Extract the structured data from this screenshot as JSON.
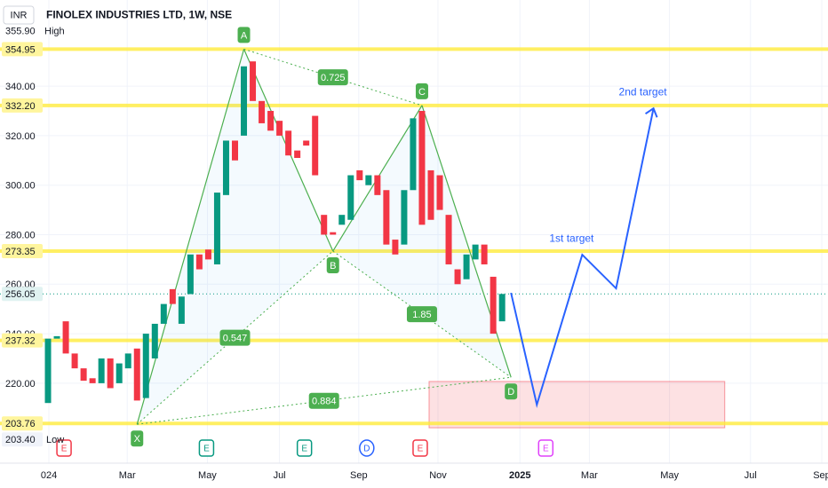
{
  "chart_data": {
    "type": "candlestick",
    "title": "FINOLEX INDUSTRIES LTD, 1W, NSE",
    "currency": "INR",
    "up_color": "#089981",
    "down_color": "#f23645",
    "categories": [
      null,
      null,
      null,
      null,
      null,
      null,
      null,
      null,
      null,
      null,
      null,
      null,
      null,
      null,
      null,
      null,
      null,
      null,
      null,
      null,
      null,
      null,
      null,
      null,
      null,
      null,
      null,
      null,
      null,
      null,
      null,
      null,
      null,
      null,
      null,
      null,
      null,
      null,
      null,
      null,
      null,
      null,
      null,
      null,
      null,
      null,
      null,
      null,
      null,
      null,
      null,
      null
    ],
    "open": [
      212,
      238,
      245,
      232,
      226,
      222,
      220,
      230,
      220,
      226,
      234,
      214,
      230,
      244,
      258,
      244,
      256,
      272,
      274,
      268,
      296,
      318,
      320,
      350,
      334,
      330,
      326,
      322,
      314,
      318,
      328,
      288,
      281,
      284,
      286,
      306,
      300,
      304,
      298,
      278,
      276,
      298,
      330,
      306,
      304,
      288,
      266,
      262,
      270,
      276,
      263,
      245
    ],
    "high": {
      "value": {
        "value": 355.9,
        "label": "355.90"
      },
      "tag": "High"
    },
    "low": {
      "value": {
        "value": 203.4,
        "label": "203.40"
      },
      "tag": "Low"
    },
    "close": [
      238,
      239,
      232,
      226,
      221,
      220,
      230,
      218,
      228,
      232,
      213,
      240,
      244,
      252,
      252,
      255,
      272,
      266,
      270,
      297,
      318,
      310,
      348,
      334,
      325,
      322,
      320,
      312,
      311,
      316,
      304,
      280,
      280,
      288,
      304,
      302,
      304,
      296,
      276,
      272,
      298,
      327,
      284,
      286,
      290,
      268,
      260,
      272,
      276,
      268,
      240,
      256.05
    ],
    "xlim": [
      -5.39,
      87.6
    ],
    "ylim": [
      187.7,
      374.8
    ],
    "xticks": [
      {
        "value": 0.1,
        "label": "024"
      },
      {
        "value": 8.9,
        "label": "Mar"
      },
      {
        "value": 17.9,
        "label": "May"
      },
      {
        "value": 26,
        "label": "Jul"
      },
      {
        "value": 34.9,
        "label": "Sep"
      },
      {
        "value": 43.8,
        "label": "Nov"
      },
      {
        "value": 53,
        "label": "2025"
      },
      {
        "value": 60.8,
        "label": "Mar"
      },
      {
        "value": 69.8,
        "label": "May"
      },
      {
        "value": 78.9,
        "label": "Jul"
      },
      {
        "value": 86.9,
        "label": "Sep"
      }
    ],
    "yticks": [
      {
        "value": 340,
        "label": "340.00"
      },
      {
        "value": 320,
        "label": "320.00"
      },
      {
        "value": 300,
        "label": "300.00"
      },
      {
        "value": 280,
        "label": "280.00"
      },
      {
        "value": 260,
        "label": "260.00"
      },
      {
        "value": 240,
        "label": "240.00"
      },
      {
        "value": 220,
        "label": "220.00"
      }
    ],
    "levels": [
      354.95,
      {
        "value": 332.2,
        "label": "332.20"
      },
      273.35,
      237.32,
      203.76
    ],
    "level_color": "#ffeb3b",
    "last_price": 256.05,
    "pattern": {
      "color": "#4caf50",
      "points": [
        {
          "label": "X",
          "x": 10,
          "y": 203.4
        },
        {
          "label": "A",
          "x": 22,
          "y": 354.95
        },
        {
          "label": "B",
          "x": 32,
          "y": 273.35
        },
        {
          "label": "C",
          "x": 42,
          "y": 332.2
        },
        {
          "label": "D",
          "x": 52,
          "y": 222.4
        }
      ],
      "ratios": [
        0.725,
        0.547,
        1.85,
        0.884
      ]
    },
    "projection": {
      "color": "#2962ff",
      "x": [
        52,
        54.9,
        60,
        63.8,
        68
      ],
      "y": [
        256.5,
        211.3,
        271.9,
        258.3,
        331
      ],
      "labels": [
        "1st target",
        "2nd target"
      ]
    },
    "zone": {
      "xlim": [
        42.8,
        76
      ],
      "ylim": [
        202,
        220.7
      ],
      "color": "#f23645"
    },
    "events": [
      {
        "label": "E",
        "x": 1.8,
        "color": "#f23645"
      },
      {
        "label": "E",
        "x": 17.8,
        "color": "#089981"
      },
      {
        "label": "E",
        "x": 28.8,
        "color": "#089981"
      },
      {
        "label": "D",
        "x": 35.8,
        "color": "#2962ff"
      },
      {
        "label": "E",
        "x": 41.8,
        "color": "#f23645"
      },
      {
        "label": "E",
        "x": 55.9,
        "color": "#e040fb"
      }
    ]
  }
}
